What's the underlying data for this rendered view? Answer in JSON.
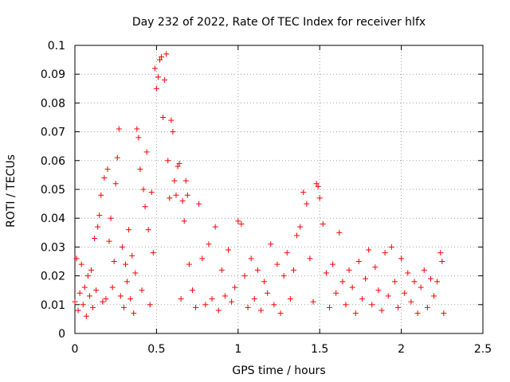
{
  "chart_data": {
    "type": "scatter",
    "title": "Day 232 of 2022, Rate Of TEC Index for receiver hlfx",
    "xlabel": "GPS time / hours",
    "ylabel": "ROTI / TECUs",
    "xlim": [
      0,
      2.5
    ],
    "ylim": [
      0,
      0.1
    ],
    "xticks": [
      "0",
      "0.5",
      "1",
      "1.5",
      "2",
      "2.5"
    ],
    "yticks": [
      "0",
      "0.01",
      "0.02",
      "0.03",
      "0.04",
      "0.05",
      "0.06",
      "0.07",
      "0.08",
      "0.09",
      "0.1"
    ],
    "grid": true,
    "marker": "+",
    "colors": {
      "points": "#ff0000",
      "grid": "#a0a0a0",
      "axes": "#000000"
    },
    "series": [
      {
        "points": [
          [
            0.0,
            0.011
          ],
          [
            0.01,
            0.026
          ],
          [
            0.02,
            0.008
          ],
          [
            0.03,
            0.014
          ],
          [
            0.04,
            0.024
          ],
          [
            0.05,
            0.01
          ],
          [
            0.06,
            0.016
          ],
          [
            0.07,
            0.006
          ],
          [
            0.08,
            0.02
          ],
          [
            0.09,
            0.013
          ],
          [
            0.1,
            0.022
          ],
          [
            0.11,
            0.009
          ],
          [
            0.12,
            0.033
          ],
          [
            0.13,
            0.015
          ],
          [
            0.14,
            0.037
          ],
          [
            0.15,
            0.041
          ],
          [
            0.16,
            0.048
          ],
          [
            0.17,
            0.011
          ],
          [
            0.18,
            0.054
          ],
          [
            0.19,
            0.012
          ],
          [
            0.2,
            0.057
          ],
          [
            0.21,
            0.032
          ],
          [
            0.22,
            0.04
          ],
          [
            0.23,
            0.016
          ],
          [
            0.24,
            0.025
          ],
          [
            0.25,
            0.052
          ],
          [
            0.26,
            0.061
          ],
          [
            0.27,
            0.071
          ],
          [
            0.28,
            0.013
          ],
          [
            0.29,
            0.03
          ],
          [
            0.3,
            0.009
          ],
          [
            0.31,
            0.024
          ],
          [
            0.32,
            0.018
          ],
          [
            0.33,
            0.036
          ],
          [
            0.34,
            0.012
          ],
          [
            0.35,
            0.027
          ],
          [
            0.36,
            0.007
          ],
          [
            0.37,
            0.021
          ],
          [
            0.38,
            0.071
          ],
          [
            0.39,
            0.068
          ],
          [
            0.4,
            0.057
          ],
          [
            0.41,
            0.015
          ],
          [
            0.42,
            0.05
          ],
          [
            0.43,
            0.044
          ],
          [
            0.44,
            0.063
          ],
          [
            0.45,
            0.036
          ],
          [
            0.46,
            0.01
          ],
          [
            0.47,
            0.049
          ],
          [
            0.48,
            0.028
          ],
          [
            0.49,
            0.092
          ],
          [
            0.5,
            0.085
          ],
          [
            0.51,
            0.089
          ],
          [
            0.52,
            0.095
          ],
          [
            0.53,
            0.096
          ],
          [
            0.54,
            0.075
          ],
          [
            0.55,
            0.088
          ],
          [
            0.56,
            0.097
          ],
          [
            0.57,
            0.06
          ],
          [
            0.58,
            0.047
          ],
          [
            0.59,
            0.074
          ],
          [
            0.6,
            0.07
          ],
          [
            0.61,
            0.053
          ],
          [
            0.62,
            0.048
          ],
          [
            0.63,
            0.058
          ],
          [
            0.64,
            0.059
          ],
          [
            0.65,
            0.012
          ],
          [
            0.66,
            0.046
          ],
          [
            0.67,
            0.039
          ],
          [
            0.68,
            0.053
          ],
          [
            0.69,
            0.048
          ],
          [
            0.7,
            0.024
          ],
          [
            0.72,
            0.015
          ],
          [
            0.74,
            0.009
          ],
          [
            0.76,
            0.045
          ],
          [
            0.78,
            0.026
          ],
          [
            0.8,
            0.01
          ],
          [
            0.82,
            0.031
          ],
          [
            0.84,
            0.012
          ],
          [
            0.86,
            0.037
          ],
          [
            0.88,
            0.008
          ],
          [
            0.9,
            0.022
          ],
          [
            0.92,
            0.013
          ],
          [
            0.94,
            0.029
          ],
          [
            0.96,
            0.011
          ],
          [
            0.98,
            0.016
          ],
          [
            1.0,
            0.039
          ],
          [
            1.02,
            0.038
          ],
          [
            1.04,
            0.02
          ],
          [
            1.06,
            0.009
          ],
          [
            1.08,
            0.026
          ],
          [
            1.1,
            0.012
          ],
          [
            1.12,
            0.022
          ],
          [
            1.14,
            0.008
          ],
          [
            1.16,
            0.018
          ],
          [
            1.18,
            0.014
          ],
          [
            1.2,
            0.031
          ],
          [
            1.22,
            0.01
          ],
          [
            1.24,
            0.024
          ],
          [
            1.26,
            0.007
          ],
          [
            1.28,
            0.02
          ],
          [
            1.3,
            0.028
          ],
          [
            1.32,
            0.012
          ],
          [
            1.34,
            0.022
          ],
          [
            1.36,
            0.034
          ],
          [
            1.38,
            0.037
          ],
          [
            1.4,
            0.049
          ],
          [
            1.42,
            0.045
          ],
          [
            1.44,
            0.026
          ],
          [
            1.46,
            0.011
          ],
          [
            1.48,
            0.052
          ],
          [
            1.49,
            0.051
          ],
          [
            1.5,
            0.047
          ],
          [
            1.52,
            0.038
          ],
          [
            1.54,
            0.021
          ],
          [
            1.56,
            0.009
          ],
          [
            1.58,
            0.024
          ],
          [
            1.6,
            0.014
          ],
          [
            1.62,
            0.035
          ],
          [
            1.64,
            0.018
          ],
          [
            1.66,
            0.01
          ],
          [
            1.68,
            0.022
          ],
          [
            1.7,
            0.016
          ],
          [
            1.72,
            0.007
          ],
          [
            1.74,
            0.025
          ],
          [
            1.76,
            0.012
          ],
          [
            1.78,
            0.019
          ],
          [
            1.8,
            0.029
          ],
          [
            1.82,
            0.01
          ],
          [
            1.84,
            0.023
          ],
          [
            1.86,
            0.015
          ],
          [
            1.88,
            0.008
          ],
          [
            1.9,
            0.028
          ],
          [
            1.92,
            0.013
          ],
          [
            1.94,
            0.03
          ],
          [
            1.96,
            0.018
          ],
          [
            1.98,
            0.009
          ],
          [
            2.0,
            0.026
          ],
          [
            2.02,
            0.014
          ],
          [
            2.04,
            0.021
          ],
          [
            2.06,
            0.011
          ],
          [
            2.08,
            0.018
          ],
          [
            2.1,
            0.007
          ],
          [
            2.12,
            0.016
          ],
          [
            2.14,
            0.022
          ],
          [
            2.16,
            0.009
          ],
          [
            2.18,
            0.019
          ],
          [
            2.2,
            0.013
          ],
          [
            2.22,
            0.018
          ],
          [
            2.24,
            0.028
          ],
          [
            2.25,
            0.025
          ],
          [
            2.26,
            0.007
          ]
        ]
      }
    ]
  }
}
